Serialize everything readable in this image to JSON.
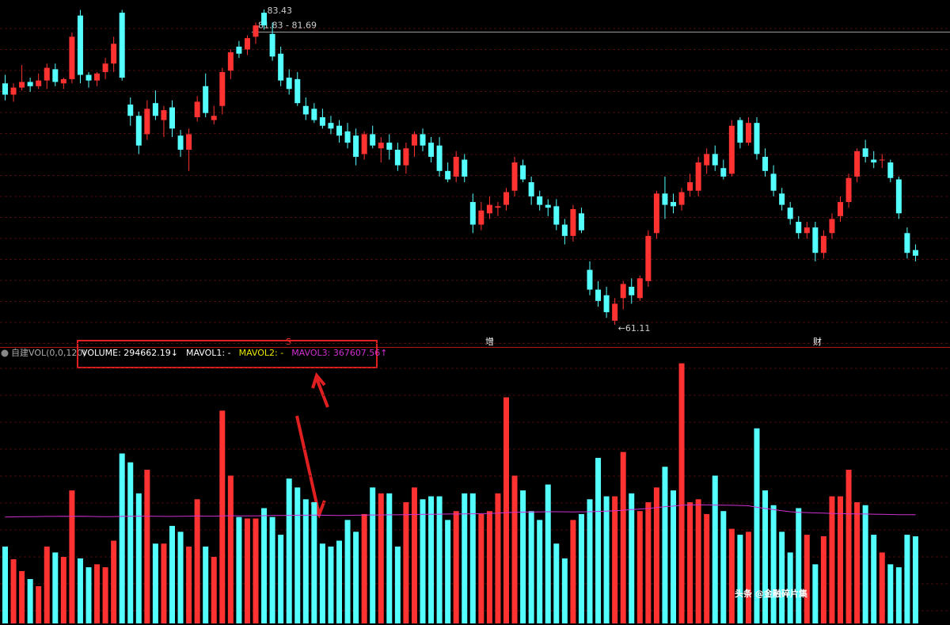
{
  "chart_data": [
    {
      "type": "candlestick",
      "ylim": [
        59.54,
        84.1
      ],
      "up_color": "#ff3232",
      "down_color": "#54ffff",
      "values": [
        [
          78.2,
          78.8,
          77.0,
          77.4
        ],
        [
          77.4,
          78.2,
          76.9,
          77.9
        ],
        [
          77.9,
          79.5,
          77.7,
          78.3
        ],
        [
          78.3,
          78.6,
          77.6,
          78.0
        ],
        [
          78.0,
          78.9,
          77.8,
          78.4
        ],
        [
          78.4,
          79.6,
          77.8,
          79.3
        ],
        [
          79.2,
          79.6,
          78.0,
          78.3
        ],
        [
          78.2,
          78.6,
          77.8,
          78.5
        ],
        [
          78.5,
          81.8,
          78.2,
          81.5
        ],
        [
          83.0,
          83.4,
          78.2,
          78.8
        ],
        [
          78.8,
          79.0,
          77.9,
          78.4
        ],
        [
          78.4,
          79.0,
          78.0,
          78.9
        ],
        [
          79.0,
          80.0,
          78.5,
          79.6
        ],
        [
          79.6,
          81.5,
          79.0,
          81.0
        ],
        [
          83.2,
          83.4,
          78.4,
          78.6
        ],
        [
          76.7,
          77.2,
          75.2,
          75.9
        ],
        [
          75.9,
          76.2,
          73.2,
          73.8
        ],
        [
          74.6,
          77.0,
          74.2,
          76.4
        ],
        [
          76.8,
          77.7,
          75.6,
          75.9
        ],
        [
          75.6,
          76.6,
          74.4,
          76.3
        ],
        [
          76.5,
          77.0,
          74.4,
          75.0
        ],
        [
          74.5,
          74.9,
          73.0,
          73.5
        ],
        [
          73.5,
          75.0,
          72.0,
          74.6
        ],
        [
          75.8,
          77.3,
          75.5,
          76.9
        ],
        [
          78.0,
          78.9,
          75.8,
          76.1
        ],
        [
          75.6,
          76.6,
          75.3,
          75.9
        ],
        [
          76.6,
          79.3,
          76.0,
          79.0
        ],
        [
          79.1,
          80.6,
          78.5,
          80.4
        ],
        [
          80.8,
          81.2,
          80.0,
          80.3
        ],
        [
          80.6,
          81.6,
          80.2,
          81.4
        ],
        [
          81.5,
          82.5,
          81.0,
          82.3
        ],
        [
          83.2,
          83.43,
          82.0,
          82.3
        ],
        [
          81.7,
          82.5,
          79.8,
          80.1
        ],
        [
          80.3,
          80.8,
          78.0,
          78.4
        ],
        [
          78.6,
          79.2,
          77.4,
          77.8
        ],
        [
          78.5,
          79.0,
          76.6,
          76.8
        ],
        [
          76.6,
          77.2,
          75.6,
          76.0
        ],
        [
          76.4,
          76.8,
          75.4,
          75.6
        ],
        [
          75.8,
          76.4,
          75.0,
          75.2
        ],
        [
          75.4,
          75.9,
          74.6,
          75.0
        ],
        [
          75.2,
          75.6,
          74.0,
          74.5
        ],
        [
          74.8,
          75.4,
          73.6,
          74.0
        ],
        [
          74.5,
          75.0,
          72.4,
          73.0
        ],
        [
          73.2,
          74.8,
          72.8,
          74.6
        ],
        [
          74.6,
          75.2,
          73.6,
          73.8
        ],
        [
          73.6,
          74.4,
          72.6,
          74.0
        ],
        [
          74.0,
          74.6,
          72.8,
          73.5
        ],
        [
          73.5,
          74.0,
          72.0,
          72.4
        ],
        [
          72.4,
          74.0,
          71.8,
          73.6
        ],
        [
          73.8,
          74.8,
          73.0,
          74.6
        ],
        [
          74.6,
          75.0,
          73.4,
          73.8
        ],
        [
          74.0,
          74.4,
          72.6,
          73.0
        ],
        [
          73.8,
          74.4,
          71.6,
          72.0
        ],
        [
          72.0,
          72.6,
          71.2,
          71.4
        ],
        [
          71.6,
          73.4,
          71.2,
          73.0
        ],
        [
          72.8,
          73.2,
          71.2,
          71.6
        ],
        [
          69.8,
          70.4,
          67.6,
          68.2
        ],
        [
          68.2,
          69.8,
          67.8,
          69.2
        ],
        [
          69.0,
          70.2,
          68.6,
          69.6
        ],
        [
          69.4,
          69.8,
          68.8,
          69.5
        ],
        [
          69.6,
          70.8,
          69.2,
          70.5
        ],
        [
          70.6,
          73.0,
          70.2,
          72.6
        ],
        [
          72.4,
          72.8,
          71.2,
          71.4
        ],
        [
          71.2,
          71.6,
          69.6,
          70.2
        ],
        [
          70.2,
          70.6,
          69.2,
          69.6
        ],
        [
          69.6,
          70.0,
          68.8,
          69.4
        ],
        [
          69.5,
          70.0,
          67.8,
          68.2
        ],
        [
          68.2,
          68.6,
          66.8,
          67.4
        ],
        [
          67.4,
          69.6,
          67.0,
          69.3
        ],
        [
          69.0,
          69.4,
          67.6,
          67.8
        ],
        [
          65.0,
          65.6,
          63.2,
          63.6
        ],
        [
          63.6,
          64.2,
          62.4,
          62.8
        ],
        [
          63.2,
          63.8,
          61.6,
          62.0
        ],
        [
          61.4,
          63.0,
          61.11,
          62.6
        ],
        [
          63.0,
          64.2,
          62.2,
          64.0
        ],
        [
          63.8,
          64.4,
          62.6,
          63.2
        ],
        [
          63.0,
          64.6,
          62.8,
          64.4
        ],
        [
          64.2,
          67.8,
          63.8,
          67.4
        ],
        [
          67.6,
          70.6,
          67.2,
          70.4
        ],
        [
          70.4,
          71.6,
          68.6,
          69.6
        ],
        [
          69.8,
          70.4,
          69.0,
          69.5
        ],
        [
          69.6,
          70.8,
          69.2,
          70.5
        ],
        [
          70.6,
          71.8,
          70.2,
          71.2
        ],
        [
          70.6,
          73.0,
          70.2,
          72.6
        ],
        [
          72.4,
          73.6,
          71.8,
          73.2
        ],
        [
          73.2,
          73.8,
          72.0,
          72.4
        ],
        [
          72.2,
          72.8,
          71.4,
          71.6
        ],
        [
          71.8,
          75.6,
          71.6,
          75.2
        ],
        [
          75.6,
          75.8,
          73.6,
          74.0
        ],
        [
          74.0,
          75.8,
          73.8,
          75.4
        ],
        [
          75.4,
          75.8,
          72.8,
          73.2
        ],
        [
          73.0,
          73.6,
          71.6,
          72.0
        ],
        [
          71.8,
          72.4,
          70.2,
          70.6
        ],
        [
          70.4,
          70.8,
          69.2,
          69.6
        ],
        [
          69.4,
          69.8,
          68.2,
          68.6
        ],
        [
          68.4,
          68.8,
          67.2,
          67.6
        ],
        [
          67.6,
          68.4,
          67.2,
          68.0
        ],
        [
          68.0,
          68.4,
          65.6,
          66.2
        ],
        [
          66.2,
          67.8,
          65.8,
          67.4
        ],
        [
          67.6,
          69.0,
          67.2,
          68.6
        ],
        [
          68.8,
          70.2,
          68.4,
          69.8
        ],
        [
          69.8,
          71.8,
          69.4,
          71.5
        ],
        [
          71.6,
          73.6,
          71.2,
          73.4
        ],
        [
          73.6,
          74.2,
          72.6,
          73.0
        ],
        [
          72.8,
          73.4,
          72.2,
          72.6
        ],
        [
          72.8,
          73.2,
          72.2,
          72.8
        ],
        [
          72.6,
          72.8,
          71.2,
          71.5
        ],
        [
          71.4,
          71.6,
          68.6,
          69.0
        ],
        [
          67.6,
          68.0,
          65.8,
          66.2
        ],
        [
          66.4,
          66.8,
          65.6,
          66.0
        ]
      ],
      "annotations": [
        {
          "value": 83.43,
          "label": "83.43"
        },
        {
          "value": 61.11,
          "label": "←61.11"
        }
      ],
      "price_line": {
        "value": 81.83,
        "label": "81.83 - 81.69",
        "color": "#9a9a9a"
      }
    },
    {
      "type": "bar",
      "title": "自建VOL(0,0,120)",
      "ylim": [
        0,
        930000
      ],
      "series": [
        {
          "label": "VOLUME: 294662.19↓",
          "color": "#ffffff",
          "values": [
            260000,
            217000,
            177000,
            150000,
            126000,
            260000,
            240000,
            225000,
            450000,
            220000,
            190000,
            200000,
            190000,
            280000,
            575000,
            545000,
            440000,
            520000,
            270000,
            270000,
            330000,
            310000,
            260000,
            420000,
            260000,
            225000,
            720000,
            500000,
            360000,
            355000,
            355000,
            390000,
            360000,
            300000,
            490000,
            460000,
            420000,
            410000,
            270000,
            260000,
            280000,
            350000,
            310000,
            370000,
            460000,
            440000,
            440000,
            260000,
            410000,
            460000,
            420000,
            430000,
            430000,
            350000,
            380000,
            440000,
            440000,
            370000,
            380000,
            440000,
            765000,
            500000,
            450000,
            380000,
            350000,
            470000,
            270000,
            220000,
            350000,
            370000,
            420000,
            560000,
            430000,
            430000,
            580000,
            440000,
            380000,
            410000,
            460000,
            530000,
            450000,
            880000,
            410000,
            420000,
            370000,
            500000,
            380000,
            320000,
            300000,
            310000,
            660000,
            450000,
            400000,
            310000,
            240000,
            390000,
            300000,
            200000,
            295000,
            430000,
            430000,
            520000,
            410000,
            400000,
            300000,
            240000,
            200000,
            190000,
            300000,
            294662.19
          ]
        },
        {
          "label": "MAVOL1: -",
          "color": "#ffffff"
        },
        {
          "label": "MAVOL2: -",
          "color": "#e8e800"
        },
        {
          "label": "MAVOL3: 367607.56↑",
          "color": "#d030d0",
          "values": [
            360000,
            360500,
            361000,
            361000,
            361500,
            362000,
            362000,
            362500,
            362000,
            362500,
            362000,
            361500,
            361000,
            361500,
            362000,
            362500,
            363000,
            363000,
            362500,
            362000,
            362000,
            362500,
            363000,
            363500,
            363000,
            363000,
            364000,
            364500,
            364000,
            364000,
            364000,
            364500,
            365000,
            365000,
            365500,
            366000,
            366000,
            366500,
            366000,
            365500,
            365000,
            365500,
            366000,
            366500,
            367000,
            367000,
            367500,
            367500,
            368000,
            368500,
            369000,
            369000,
            369500,
            370000,
            370000,
            370500,
            371000,
            371500,
            372000,
            373000,
            375000,
            376000,
            376500,
            377000,
            377000,
            378000,
            378000,
            377500,
            377000,
            377500,
            378000,
            379000,
            380000,
            381000,
            383000,
            385000,
            387000,
            389000,
            392000,
            395000,
            397000,
            400000,
            401000,
            401500,
            401000,
            400500,
            400000,
            399500,
            399000,
            398000,
            393000,
            389000,
            385000,
            381000,
            378000,
            376000,
            375000,
            374000,
            373000,
            372000,
            371500,
            371000,
            370500,
            370000,
            369500,
            369000,
            368500,
            368000,
            367800,
            367607.56
          ]
        }
      ]
    }
  ],
  "markers": [
    "S",
    "增",
    "财"
  ],
  "watermark": "头条 @金融碎片集"
}
